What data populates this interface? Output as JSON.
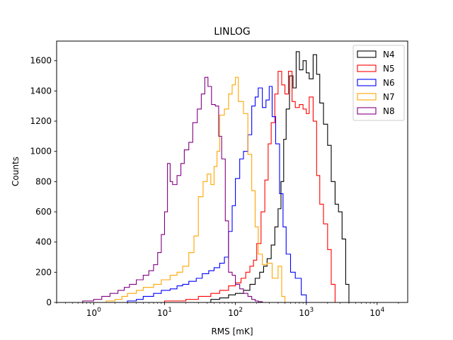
{
  "chart_data": {
    "type": "histogram",
    "title": "LINLOG",
    "xlabel": "RMS [mK]",
    "ylabel": "Counts",
    "x_scale": "log",
    "xlim": [
      0.3,
      27000
    ],
    "ylim": [
      0,
      1730
    ],
    "x_tick_labels": [
      {
        "value": 1,
        "base": "10",
        "exp": "0"
      },
      {
        "value": 10,
        "base": "10",
        "exp": "1"
      },
      {
        "value": 100,
        "base": "10",
        "exp": "2"
      },
      {
        "value": 1000,
        "base": "10",
        "exp": "3"
      },
      {
        "value": 10000,
        "base": "10",
        "exp": "4"
      }
    ],
    "y_ticks": [
      0,
      200,
      400,
      600,
      800,
      1000,
      1200,
      1400,
      1600
    ],
    "legend_position": "top-right",
    "grid": false,
    "series": [
      {
        "name": "N4",
        "color": "#000000",
        "points": [
          [
            30,
            0
          ],
          [
            45,
            20
          ],
          [
            60,
            30
          ],
          [
            80,
            50
          ],
          [
            100,
            60
          ],
          [
            130,
            80
          ],
          [
            160,
            120
          ],
          [
            190,
            160
          ],
          [
            220,
            200
          ],
          [
            250,
            240
          ],
          [
            280,
            290
          ],
          [
            320,
            380
          ],
          [
            360,
            500
          ],
          [
            400,
            620
          ],
          [
            440,
            800
          ],
          [
            480,
            1080
          ],
          [
            520,
            1280
          ],
          [
            580,
            1500
          ],
          [
            650,
            1420
          ],
          [
            720,
            1660
          ],
          [
            800,
            1540
          ],
          [
            900,
            1600
          ],
          [
            1000,
            1520
          ],
          [
            1100,
            1480
          ],
          [
            1250,
            1640
          ],
          [
            1400,
            1510
          ],
          [
            1550,
            1320
          ],
          [
            1750,
            1180
          ],
          [
            2000,
            1040
          ],
          [
            2250,
            800
          ],
          [
            2550,
            650
          ],
          [
            2850,
            600
          ],
          [
            3200,
            420
          ],
          [
            3600,
            120
          ],
          [
            4000,
            0
          ]
        ]
      },
      {
        "name": "N5",
        "color": "#ff0000",
        "points": [
          [
            4,
            0
          ],
          [
            10,
            10
          ],
          [
            20,
            20
          ],
          [
            30,
            40
          ],
          [
            45,
            60
          ],
          [
            60,
            80
          ],
          [
            80,
            110
          ],
          [
            100,
            130
          ],
          [
            120,
            160
          ],
          [
            140,
            200
          ],
          [
            160,
            240
          ],
          [
            180,
            280
          ],
          [
            200,
            390
          ],
          [
            230,
            600
          ],
          [
            260,
            810
          ],
          [
            290,
            1050
          ],
          [
            320,
            1190
          ],
          [
            360,
            1380
          ],
          [
            400,
            1530
          ],
          [
            450,
            1440
          ],
          [
            500,
            1380
          ],
          [
            560,
            1530
          ],
          [
            630,
            1330
          ],
          [
            700,
            1290
          ],
          [
            800,
            1310
          ],
          [
            900,
            1280
          ],
          [
            1000,
            1250
          ],
          [
            1100,
            1360
          ],
          [
            1250,
            1200
          ],
          [
            1400,
            840
          ],
          [
            1550,
            650
          ],
          [
            1750,
            520
          ],
          [
            2000,
            350
          ],
          [
            2250,
            120
          ],
          [
            2550,
            0
          ]
        ]
      },
      {
        "name": "N6",
        "color": "#0000ff",
        "points": [
          [
            2,
            0
          ],
          [
            3,
            10
          ],
          [
            4,
            20
          ],
          [
            5,
            40
          ],
          [
            7,
            60
          ],
          [
            9,
            80
          ],
          [
            12,
            90
          ],
          [
            15,
            110
          ],
          [
            18,
            120
          ],
          [
            22,
            140
          ],
          [
            28,
            160
          ],
          [
            34,
            190
          ],
          [
            42,
            210
          ],
          [
            50,
            230
          ],
          [
            60,
            260
          ],
          [
            70,
            300
          ],
          [
            80,
            470
          ],
          [
            90,
            640
          ],
          [
            100,
            820
          ],
          [
            115,
            950
          ],
          [
            130,
            1000
          ],
          [
            150,
            1110
          ],
          [
            170,
            1300
          ],
          [
            190,
            1360
          ],
          [
            210,
            1420
          ],
          [
            240,
            1290
          ],
          [
            270,
            1340
          ],
          [
            300,
            1430
          ],
          [
            330,
            1230
          ],
          [
            370,
            1050
          ],
          [
            420,
            720
          ],
          [
            470,
            500
          ],
          [
            520,
            320
          ],
          [
            600,
            200
          ],
          [
            700,
            160
          ],
          [
            850,
            50
          ],
          [
            1000,
            0
          ]
        ]
      },
      {
        "name": "N7",
        "color": "#ffa500",
        "points": [
          [
            1,
            0
          ],
          [
            1.5,
            10
          ],
          [
            2,
            20
          ],
          [
            2.5,
            40
          ],
          [
            3,
            60
          ],
          [
            4,
            80
          ],
          [
            5,
            100
          ],
          [
            7,
            120
          ],
          [
            9,
            150
          ],
          [
            12,
            180
          ],
          [
            15,
            200
          ],
          [
            18,
            240
          ],
          [
            22,
            330
          ],
          [
            26,
            440
          ],
          [
            30,
            700
          ],
          [
            35,
            800
          ],
          [
            40,
            850
          ],
          [
            45,
            780
          ],
          [
            50,
            900
          ],
          [
            55,
            1000
          ],
          [
            60,
            1240
          ],
          [
            70,
            1280
          ],
          [
            80,
            1380
          ],
          [
            90,
            1440
          ],
          [
            100,
            1490
          ],
          [
            110,
            1330
          ],
          [
            130,
            1250
          ],
          [
            150,
            980
          ],
          [
            170,
            740
          ],
          [
            190,
            500
          ],
          [
            210,
            320
          ],
          [
            240,
            250
          ],
          [
            280,
            260
          ],
          [
            330,
            160
          ],
          [
            400,
            240
          ],
          [
            450,
            40
          ],
          [
            500,
            0
          ]
        ]
      },
      {
        "name": "N8",
        "color": "#800080",
        "points": [
          [
            0.5,
            0
          ],
          [
            0.7,
            10
          ],
          [
            1,
            20
          ],
          [
            1.3,
            40
          ],
          [
            1.7,
            60
          ],
          [
            2.2,
            80
          ],
          [
            2.7,
            100
          ],
          [
            3.2,
            120
          ],
          [
            4,
            150
          ],
          [
            5,
            180
          ],
          [
            6,
            210
          ],
          [
            7,
            250
          ],
          [
            8,
            330
          ],
          [
            9,
            450
          ],
          [
            10,
            600
          ],
          [
            11,
            920
          ],
          [
            12,
            800
          ],
          [
            13,
            780
          ],
          [
            15,
            840
          ],
          [
            17,
            920
          ],
          [
            19,
            1010
          ],
          [
            22,
            1060
          ],
          [
            25,
            1190
          ],
          [
            29,
            1280
          ],
          [
            33,
            1380
          ],
          [
            37,
            1490
          ],
          [
            41,
            1430
          ],
          [
            46,
            1310
          ],
          [
            52,
            1300
          ],
          [
            58,
            1100
          ],
          [
            64,
            950
          ],
          [
            72,
            540
          ],
          [
            80,
            200
          ],
          [
            90,
            180
          ],
          [
            100,
            120
          ],
          [
            115,
            90
          ],
          [
            130,
            60
          ],
          [
            150,
            40
          ],
          [
            170,
            20
          ],
          [
            190,
            10
          ],
          [
            210,
            5
          ],
          [
            240,
            0
          ]
        ]
      }
    ]
  }
}
